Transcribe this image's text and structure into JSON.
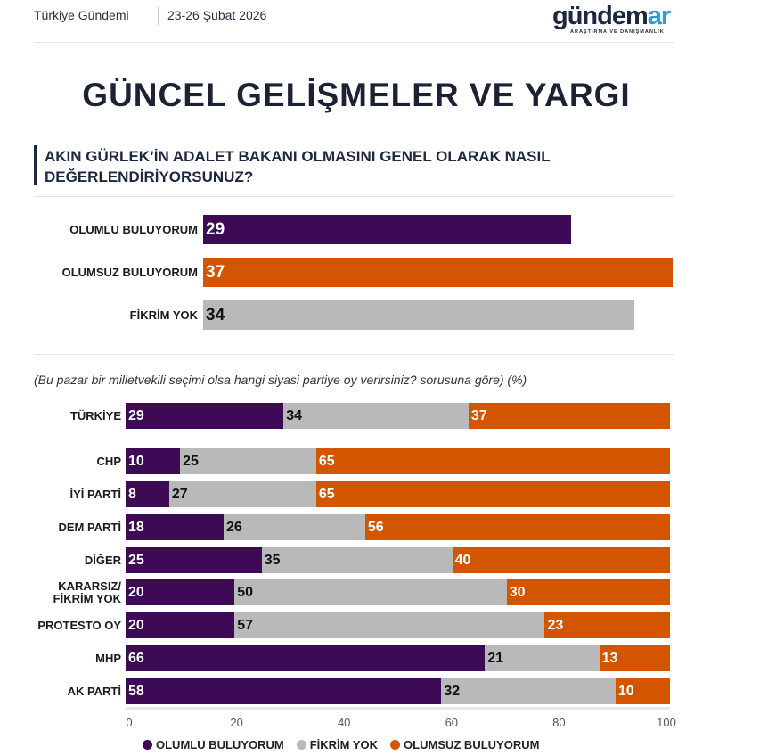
{
  "header": {
    "left": "Türkiye Gündemi",
    "date": "23-26 Şubat 2026",
    "logo_main": "gündem",
    "logo_accent": "ar",
    "logo_sub": "ARAŞTIRMA VE DANIŞMANLIK"
  },
  "title": "GÜNCEL GELİŞMELER VE YARGI",
  "question_line1": "AKIN GÜRLEK’İN ADALET BAKANI OLMASINI GENEL OLARAK NASIL",
  "question_line2": "DEĞERLENDİRİYORSUNUZ?",
  "note": "(Bu pazar bir milletvekili seçimi olsa hangi siyasi partiye oy verirsiniz? sorusuna göre) (%)",
  "colors": {
    "olumlu": "#3d0a56",
    "fikrim_yok": "#b9b9b9",
    "olumsuz": "#d45500"
  },
  "chart_data": [
    {
      "type": "bar",
      "orientation": "horizontal",
      "categories": [
        "OLUMLU BULUYORUM",
        "OLUMSUZ BULUYORUM",
        "FİKRİM YOK"
      ],
      "values": [
        29,
        37,
        34
      ]
    },
    {
      "type": "bar",
      "orientation": "horizontal",
      "stacked": true,
      "xlim": [
        0,
        100
      ],
      "xticks": [
        "0",
        "20",
        "40",
        "60",
        "80",
        "100"
      ],
      "categories": [
        "TÜRKİYE",
        "CHP",
        "İYİ PARTİ",
        "DEM PARTİ",
        "DİĞER",
        "KARARSIZ/ FİKRİM YOK",
        "PROTESTO OY",
        "MHP",
        "AK PARTİ"
      ],
      "series": [
        {
          "name": "OLUMLU BULUYORUM",
          "values": [
            29,
            10,
            8,
            18,
            25,
            20,
            20,
            66,
            58
          ]
        },
        {
          "name": "FİKRİM YOK",
          "values": [
            34,
            25,
            27,
            26,
            35,
            50,
            57,
            21,
            32
          ]
        },
        {
          "name": "OLUMSUZ BULUYORUM",
          "values": [
            37,
            65,
            65,
            56,
            40,
            30,
            23,
            13,
            10
          ]
        }
      ],
      "legend_position": "bottom"
    }
  ]
}
